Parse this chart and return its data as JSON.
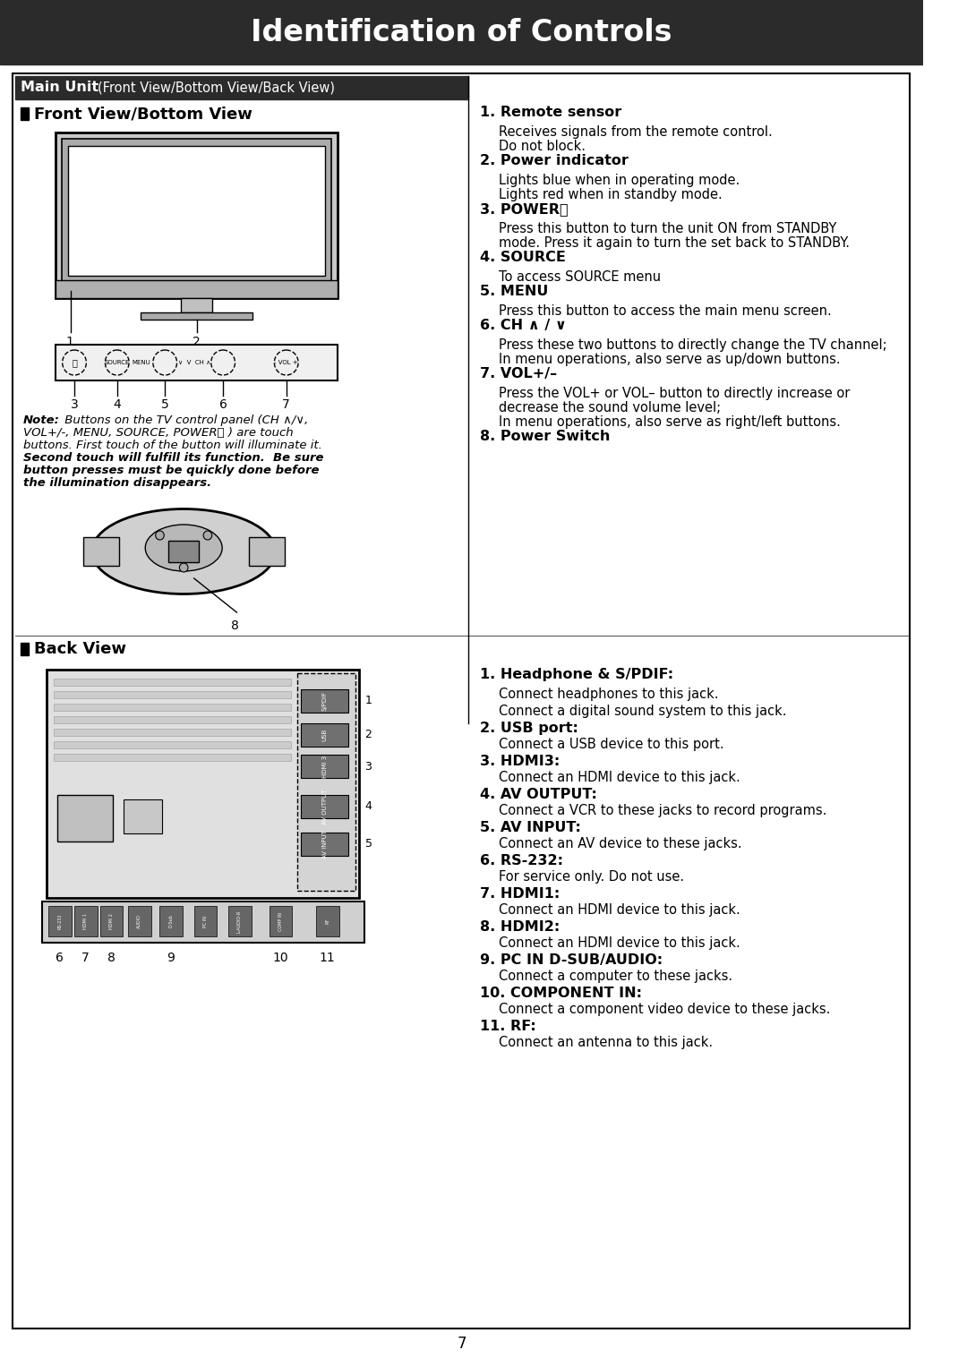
{
  "title": "Identification of Controls",
  "title_bg": "#2b2b2b",
  "title_color": "#ffffff",
  "page_bg": "#ffffff",
  "section_header_bg": "#2b2b2b",
  "section_header_color": "#ffffff",
  "page_number": "7",
  "main_unit_header_bold": "Main Unit ",
  "main_unit_header_normal": "(Front View/Bottom View/Back View)",
  "front_view_title": "Front View/Bottom View",
  "back_view_title": "Back View",
  "note_lines": [
    "Note: Buttons on the TV control panel (CH ∧/∨,",
    "VOL+/-, MENU, SOURCE, POWER⏻ ) are touch",
    "buttons. First touch of the button will illuminate it.",
    "Second touch will fulfill its function.  Be sure",
    "button presses must be quickly done before",
    "the illumination disappears."
  ],
  "front_items": [
    {
      "num": "1.",
      "bold": "Remote sensor",
      "text": "",
      "sub": false
    },
    {
      "num": "",
      "bold": "",
      "text": "Receives signals from the remote control.",
      "sub": true
    },
    {
      "num": "",
      "bold": "",
      "text": "Do not block.",
      "sub": true
    },
    {
      "num": "2.",
      "bold": "Power indicator",
      "text": "",
      "sub": false
    },
    {
      "num": "",
      "bold": "",
      "text": "Lights blue when in operating mode.",
      "sub": true
    },
    {
      "num": "",
      "bold": "",
      "text": "Lights red when in standby mode.",
      "sub": true
    },
    {
      "num": "3.",
      "bold": "POWER⏻",
      "text": "",
      "sub": false
    },
    {
      "num": "",
      "bold": "",
      "text": "Press this button to turn the unit ON from STANDBY",
      "sub": true
    },
    {
      "num": "",
      "bold": "",
      "text": "mode. Press it again to turn the set back to STANDBY.",
      "sub": true
    },
    {
      "num": "4.",
      "bold": "SOURCE",
      "text": "",
      "sub": false
    },
    {
      "num": "",
      "bold": "",
      "text": "To access SOURCE menu",
      "sub": true
    },
    {
      "num": "5.",
      "bold": "MENU",
      "text": "",
      "sub": false
    },
    {
      "num": "",
      "bold": "",
      "text": "Press this button to access the main menu screen.",
      "sub": true
    },
    {
      "num": "6.",
      "bold": "CH ∧ / ∨",
      "text": "",
      "sub": false
    },
    {
      "num": "",
      "bold": "",
      "text": "Press these two buttons to directly change the TV channel;",
      "sub": true
    },
    {
      "num": "",
      "bold": "",
      "text": "In menu operations, also serve as up/down buttons.",
      "sub": true
    },
    {
      "num": "7.",
      "bold": "VOL+/–",
      "text": "",
      "sub": false
    },
    {
      "num": "",
      "bold": "",
      "text": "Press the VOL+ or VOL– button to directly increase or",
      "sub": true
    },
    {
      "num": "",
      "bold": "",
      "text": "decrease the sound volume level;",
      "sub": true
    },
    {
      "num": "",
      "bold": "",
      "text": "In menu operations, also serve as right/left buttons.",
      "sub": true
    },
    {
      "num": "8.",
      "bold": "Power Switch",
      "text": "",
      "sub": false
    }
  ],
  "back_items": [
    {
      "num": "1.",
      "bold": "Headphone & S/PDIF:",
      "text": "",
      "sub": false
    },
    {
      "num": "",
      "bold": "",
      "text": "Connect headphones to this jack.",
      "sub": true
    },
    {
      "num": "",
      "bold": "",
      "text": "Connect a digital sound system to this jack.",
      "sub": true
    },
    {
      "num": "2.",
      "bold": "USB port:",
      "text": "Connect a USB device to this port.",
      "sub": false
    },
    {
      "num": "3.",
      "bold": "HDMI3:",
      "text": "Connect an HDMI device to this jack.",
      "sub": false
    },
    {
      "num": "4.",
      "bold": "AV OUTPUT:",
      "text": "Connect a VCR to these jacks to record programs.",
      "sub": false
    },
    {
      "num": "5.",
      "bold": "AV INPUT:",
      "text": "Connect an AV device to these jacks.",
      "sub": false
    },
    {
      "num": "6.",
      "bold": "RS-232:",
      "text": "For service only. Do not use.",
      "sub": false
    },
    {
      "num": "7.",
      "bold": "HDMI1:",
      "text": "Connect an HDMI device to this jack.",
      "sub": false
    },
    {
      "num": "8.",
      "bold": "HDMI2:",
      "text": "Connect an HDMI device to this jack.",
      "sub": false
    },
    {
      "num": "9.",
      "bold": "PC IN D-SUB/AUDIO:",
      "text": "Connect a computer to these jacks.",
      "sub": false
    },
    {
      "num": "10.",
      "bold": "COMPONENT IN:",
      "text": "Connect a component video device to these jacks.",
      "sub": false
    },
    {
      "num": "11.",
      "bold": "RF:",
      "text": "Connect an antenna to this jack.",
      "sub": false
    }
  ]
}
